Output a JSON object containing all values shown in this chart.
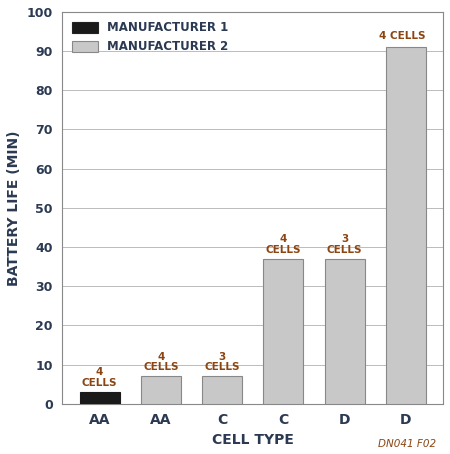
{
  "categories": [
    "AA",
    "AA",
    "C",
    "C",
    "D",
    "D"
  ],
  "values": [
    3,
    7,
    7,
    37,
    37,
    91
  ],
  "bar_colors": [
    "#1a1a1a",
    "#c8c8c8",
    "#c8c8c8",
    "#c8c8c8",
    "#c8c8c8",
    "#c8c8c8"
  ],
  "bar_edgecolors": [
    "#1a1a1a",
    "#888888",
    "#888888",
    "#888888",
    "#888888",
    "#888888"
  ],
  "annotations": [
    "4\nCELLS",
    "4\nCELLS",
    "3\nCELLS",
    "4\nCELLS",
    "3\nCELLS",
    "4 CELLS"
  ],
  "ann_ha": [
    "center",
    "center",
    "center",
    "center",
    "center",
    "right"
  ],
  "ann_inline": [
    false,
    false,
    false,
    false,
    false,
    true
  ],
  "xlabel": "CELL TYPE",
  "ylabel": "BATTERY LIFE (MIN)",
  "ylim": [
    0,
    100
  ],
  "yticks": [
    0,
    10,
    20,
    30,
    40,
    50,
    60,
    70,
    80,
    90,
    100
  ],
  "legend_labels": [
    "MANUFACTURER 1",
    "MANUFACTURER 2"
  ],
  "legend_colors": [
    "#1a1a1a",
    "#c8c8c8"
  ],
  "legend_edgecolors": [
    "#222222",
    "#888888"
  ],
  "caption": "DN041 F02",
  "bar_width": 0.65,
  "text_color": "#2b3a52",
  "ann_color": "#8B4513",
  "caption_color": "#8B4513",
  "fig_width": 4.5,
  "fig_height": 4.54,
  "dpi": 100
}
